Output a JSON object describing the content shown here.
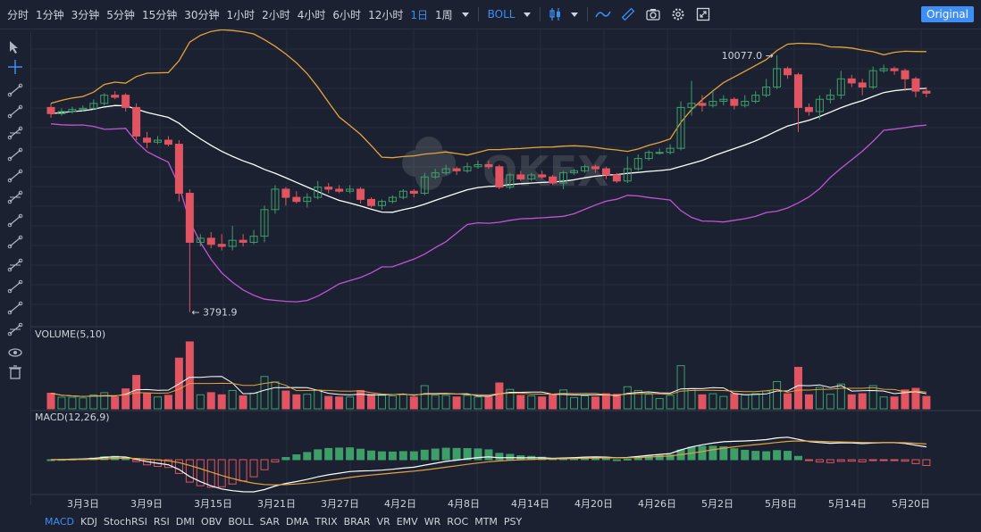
{
  "toolbar": {
    "timeframes": [
      "分时",
      "1分钟",
      "3分钟",
      "5分钟",
      "15分钟",
      "30分钟",
      "1小时",
      "2小时",
      "4小时",
      "6小时",
      "12小时",
      "1日",
      "1周"
    ],
    "active_timeframe": "1日",
    "indicator_select": "BOLL",
    "original_label": "Original",
    "icons": [
      "candlestick-icon",
      "line-chart-icon",
      "ruler-icon",
      "camera-icon",
      "gear-icon",
      "fullscreen-icon"
    ]
  },
  "left_tools": [
    "cursor-icon",
    "crosshair-icon",
    "line-icon",
    "ray-icon",
    "extended-line-icon",
    "parallel-line-icon",
    "horizontal-line-icon",
    "horizontal-ray-icon",
    "price-range-icon",
    "vertical-line-icon",
    "pitchfork-icon",
    "fibonacci-icon",
    "gann-icon",
    "magic-icon",
    "eye-icon",
    "trash-icon"
  ],
  "watermark": "OKEX",
  "price_panel": {
    "max_label": "10077.0",
    "min_label": "3791.9"
  },
  "volume_panel": {
    "label": "VOLUME(5,10)"
  },
  "macd_panel": {
    "label": "MACD(12,26,9)"
  },
  "date_axis": [
    "3月3日",
    "3月9日",
    "3月15日",
    "3月21日",
    "3月27日",
    "4月2日",
    "4月8日",
    "4月14日",
    "4月20日",
    "4月26日",
    "5月2日",
    "5月8日",
    "5月14日",
    "5月20日"
  ],
  "indicator_tabs": [
    "MACD",
    "KDJ",
    "StochRSI",
    "RSI",
    "DMI",
    "OBV",
    "BOLL",
    "SAR",
    "DMA",
    "TRIX",
    "BRAR",
    "VR",
    "EMV",
    "WR",
    "ROC",
    "MTM",
    "PSY"
  ],
  "active_indicator": "MACD",
  "colors": {
    "up": "#3e9e6a",
    "down": "#e05561",
    "bg": "#1b2130",
    "accent": "#3d8ef5",
    "boll_upper": "#e6a23c",
    "boll_mid": "#ffffff",
    "boll_lower": "#c453d6"
  },
  "chart_data": {
    "type": "candlestick",
    "candles": [
      [
        8800,
        8650,
        8900,
        8550
      ],
      [
        8650,
        8700,
        8780,
        8600
      ],
      [
        8700,
        8750,
        8820,
        8650
      ],
      [
        8750,
        8780,
        8850,
        8700
      ],
      [
        8780,
        8900,
        9000,
        8750
      ],
      [
        8900,
        9100,
        9150,
        8850
      ],
      [
        9100,
        9050,
        9200,
        9000
      ],
      [
        9100,
        8800,
        9150,
        8700
      ],
      [
        8800,
        8100,
        8900,
        8000
      ],
      [
        8050,
        7950,
        8200,
        7800
      ],
      [
        7950,
        8000,
        8100,
        7900
      ],
      [
        8000,
        7900,
        8100,
        7850
      ],
      [
        7900,
        6700,
        8000,
        6500
      ],
      [
        6700,
        5500,
        6800,
        3791.9
      ],
      [
        5500,
        5600,
        5700,
        5400
      ],
      [
        5600,
        5450,
        5750,
        5350
      ],
      [
        5450,
        5400,
        5700,
        5300
      ],
      [
        5400,
        5550,
        5900,
        5300
      ],
      [
        5550,
        5500,
        5700,
        5400
      ],
      [
        5500,
        5650,
        5800,
        5450
      ],
      [
        5650,
        6300,
        6400,
        5500
      ],
      [
        6300,
        6800,
        6900,
        6200
      ],
      [
        6800,
        6600,
        6850,
        6400
      ],
      [
        6600,
        6500,
        6750,
        6450
      ],
      [
        6500,
        6600,
        6700,
        6350
      ],
      [
        6600,
        6850,
        7000,
        6550
      ],
      [
        6850,
        6800,
        6950,
        6700
      ],
      [
        6800,
        6750,
        6900,
        6700
      ],
      [
        6750,
        6800,
        6900,
        6700
      ],
      [
        6800,
        6550,
        6850,
        6450
      ],
      [
        6550,
        6400,
        6600,
        6350
      ],
      [
        6400,
        6500,
        6550,
        6300
      ],
      [
        6500,
        6600,
        6650,
        6450
      ],
      [
        6600,
        6750,
        6800,
        6550
      ],
      [
        6750,
        6700,
        6800,
        6600
      ],
      [
        6700,
        7100,
        7200,
        6650
      ],
      [
        7100,
        7200,
        7300,
        7050
      ],
      [
        7200,
        7300,
        7400,
        7150
      ],
      [
        7300,
        7250,
        7350,
        7150
      ],
      [
        7250,
        7350,
        7450,
        7200
      ],
      [
        7350,
        7400,
        7500,
        7300
      ],
      [
        7400,
        7350,
        7500,
        7300
      ],
      [
        7350,
        6850,
        7400,
        6800
      ],
      [
        6850,
        7150,
        7200,
        6800
      ],
      [
        7150,
        7050,
        7250,
        7000
      ],
      [
        7050,
        7150,
        7200,
        7000
      ],
      [
        7150,
        7100,
        7250,
        7050
      ],
      [
        7100,
        6950,
        7150,
        6900
      ],
      [
        6950,
        7200,
        7250,
        6800
      ],
      [
        7200,
        7250,
        7300,
        7150
      ],
      [
        7250,
        7350,
        7400,
        7200
      ],
      [
        7350,
        7300,
        7400,
        7200
      ],
      [
        7300,
        7150,
        7350,
        7050
      ],
      [
        7150,
        7000,
        7200,
        6950
      ],
      [
        7000,
        7300,
        7600,
        6950
      ],
      [
        7300,
        7550,
        7650,
        7250
      ],
      [
        7550,
        7700,
        7750,
        7500
      ],
      [
        7700,
        7700,
        7800,
        7650
      ],
      [
        7700,
        7800,
        7900,
        7650
      ],
      [
        7800,
        8800,
        8950,
        7750
      ],
      [
        8800,
        8900,
        9450,
        8600
      ],
      [
        8900,
        8850,
        9100,
        8700
      ],
      [
        8850,
        8950,
        9200,
        8800
      ],
      [
        8950,
        9000,
        9100,
        8850
      ],
      [
        9000,
        8850,
        9050,
        8750
      ],
      [
        8850,
        8950,
        9100,
        8800
      ],
      [
        8950,
        9100,
        9200,
        8900
      ],
      [
        9100,
        9300,
        9500,
        9050
      ],
      [
        9300,
        9750,
        10077,
        9250
      ],
      [
        9750,
        9600,
        9800,
        9500
      ],
      [
        9600,
        8800,
        9650,
        8200
      ],
      [
        8800,
        8700,
        8900,
        8600
      ],
      [
        8700,
        9000,
        9100,
        8500
      ],
      [
        9000,
        9100,
        9250,
        8900
      ],
      [
        9100,
        9500,
        9700,
        9000
      ],
      [
        9500,
        9400,
        9600,
        9300
      ],
      [
        9400,
        9300,
        9500,
        9100
      ],
      [
        9300,
        9700,
        9800,
        9250
      ],
      [
        9700,
        9750,
        9850,
        9650
      ],
      [
        9750,
        9700,
        9800,
        9600
      ],
      [
        9700,
        9500,
        9750,
        9200
      ],
      [
        9500,
        9200,
        9550,
        9050
      ],
      [
        9200,
        9150,
        9300,
        9050
      ]
    ]
  }
}
